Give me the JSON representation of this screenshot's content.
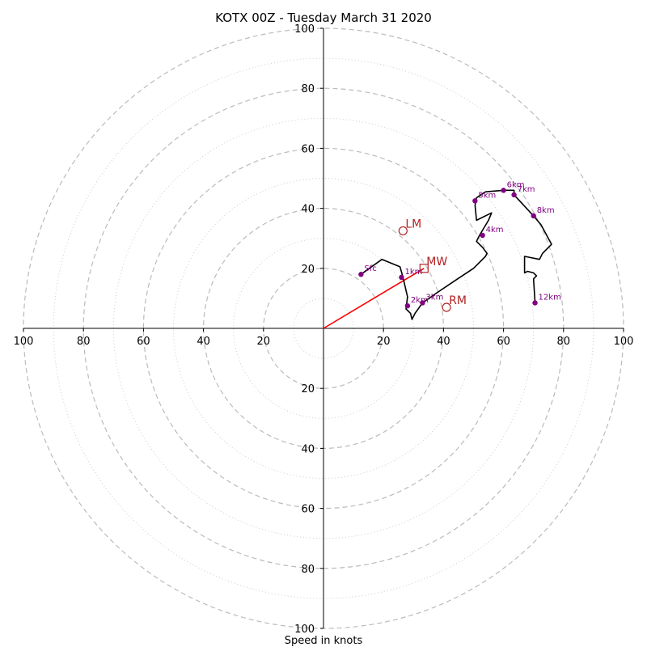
{
  "chart_data": {
    "type": "scatter",
    "title": "KOTX 00Z - Tuesday March 31 2020",
    "xlabel": "Speed in knots",
    "xlim": [
      -100,
      100
    ],
    "ylim": [
      -100,
      100
    ],
    "major_rings": [
      20,
      40,
      60,
      80,
      100
    ],
    "minor_rings": [
      10,
      30,
      50,
      70,
      90
    ],
    "x_ticks": [
      -100,
      -80,
      -60,
      -40,
      -20,
      20,
      40,
      60,
      80,
      100
    ],
    "x_tick_labels": [
      "100",
      "80",
      "60",
      "40",
      "20",
      "20",
      "40",
      "60",
      "80",
      "100"
    ],
    "y_ticks": [
      100,
      80,
      60,
      40,
      20,
      -20,
      -40,
      -60,
      -80,
      -100
    ],
    "y_tick_labels": [
      "100",
      "80",
      "60",
      "40",
      "20",
      "20",
      "40",
      "60",
      "80",
      "100"
    ],
    "hodograph": {
      "u": [
        12.5,
        19.5,
        25.5,
        26.5,
        28.0,
        27.5,
        29.0,
        29.5,
        30.5,
        33.0,
        38.0,
        44.0,
        50.0,
        54.0,
        54.5,
        53.0,
        51.0,
        52.0,
        55.0,
        56.0,
        51.0,
        50.5,
        51.0,
        54.0,
        60.0,
        63.5,
        63.5,
        70.0,
        72.5,
        76.0,
        73.0,
        72.0,
        67.0,
        67.0,
        68.0,
        70.0,
        71.0,
        70.0,
        70.5
      ],
      "v": [
        18.0,
        23.0,
        20.5,
        17.0,
        10.5,
        6.5,
        5.0,
        3.0,
        5.0,
        8.5,
        12.0,
        16.0,
        20.0,
        24.0,
        25.0,
        27.0,
        29.0,
        31.0,
        36.0,
        38.5,
        36.0,
        41.0,
        43.5,
        45.5,
        46.0,
        46.0,
        44.5,
        37.5,
        34.5,
        28.0,
        25.0,
        23.0,
        24.0,
        18.5,
        19.0,
        18.5,
        17.5,
        16.5,
        8.5
      ]
    },
    "height_markers": [
      {
        "label": "Sfc",
        "u": 12.5,
        "v": 18.0
      },
      {
        "label": "1km",
        "u": 26.0,
        "v": 17.0
      },
      {
        "label": "2km",
        "u": 28.0,
        "v": 7.5
      },
      {
        "label": "3km",
        "u": 33.0,
        "v": 8.5
      },
      {
        "label": "4km",
        "u": 53.0,
        "v": 31.0
      },
      {
        "label": "5km",
        "u": 50.5,
        "v": 42.5
      },
      {
        "label": "6km",
        "u": 60.0,
        "v": 46.0
      },
      {
        "label": "7km",
        "u": 63.5,
        "v": 44.5
      },
      {
        "label": "8km",
        "u": 70.0,
        "v": 37.5
      },
      {
        "label": "12km",
        "u": 70.5,
        "v": 8.5
      }
    ],
    "storm_motion": [
      {
        "label": "LM",
        "u": 26.5,
        "v": 32.5,
        "marker": "circle"
      },
      {
        "label": "MW",
        "u": 33.5,
        "v": 20.0,
        "marker": "square"
      },
      {
        "label": "RM",
        "u": 41.0,
        "v": 7.0,
        "marker": "circle"
      }
    ],
    "mean_wind_vector": {
      "from": [
        0,
        0
      ],
      "to": [
        33.5,
        20.0
      ]
    },
    "colors": {
      "hodograph_line": "#000000",
      "height_marker": "#800080",
      "storm_motion": "#b22222",
      "mean_wind_vector": "#ff0000",
      "major_ring": "#bbbbbb",
      "minor_ring": "#cccccc",
      "axes": "#000000"
    },
    "grid": true,
    "legend": "none"
  }
}
